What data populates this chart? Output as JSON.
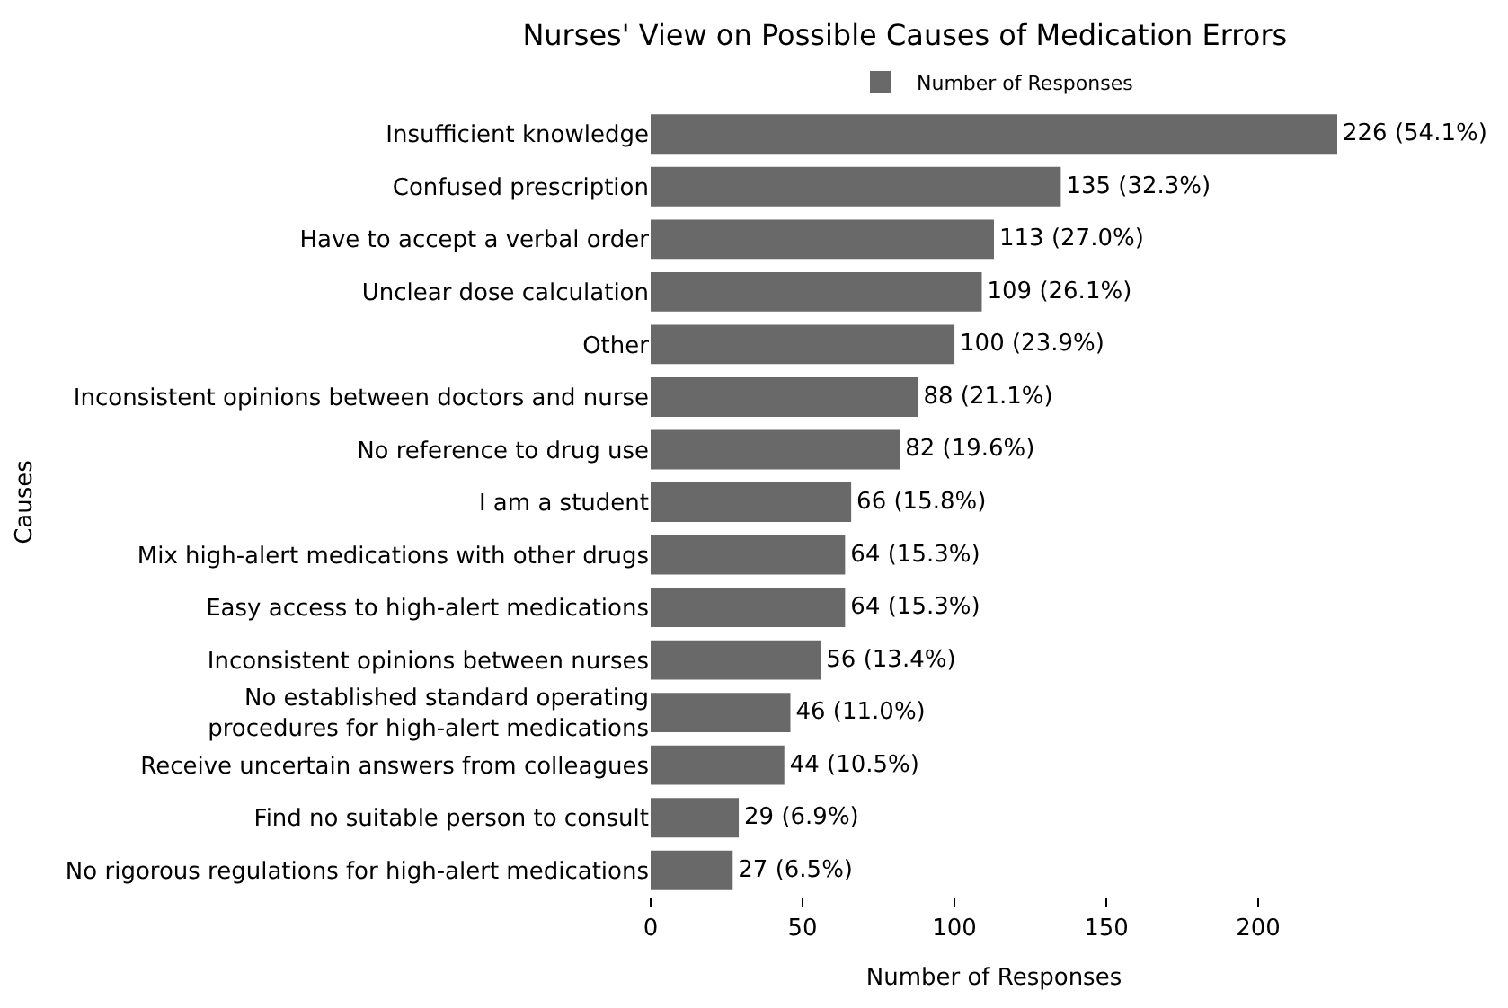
{
  "chart_data": {
    "type": "bar",
    "orientation": "horizontal",
    "title": "Nurses' View on Possible Causes of Medication Errors",
    "xlabel": "Number of Responses",
    "ylabel": "Causes",
    "categories": [
      "Insufficient knowledge",
      "Confused prescription",
      "Have to accept a verbal order",
      "Unclear dose calculation",
      "Other",
      "Inconsistent opinions between doctors and nurse",
      "No reference to drug use",
      "I am a student",
      "Mix high-alert medications with other drugs",
      "Easy access to high-alert medications",
      "Inconsistent opinions between nurses",
      "No established standard operating\nprocedures for high-alert medications",
      "Receive uncertain answers from colleagues",
      "Find no suitable person to consult",
      "No rigorous regulations for high-alert medications"
    ],
    "series": [
      {
        "name": "Number of Responses",
        "color": "#696969",
        "values": [
          226,
          135,
          113,
          109,
          100,
          88,
          82,
          66,
          64,
          64,
          56,
          46,
          44,
          29,
          27
        ],
        "value_labels": [
          "226 (54.1%)",
          "135 (32.3%)",
          "113 (27.0%)",
          "109 (26.1%)",
          "100 (23.9%)",
          "88 (21.1%)",
          "82 (19.6%)",
          "66 (15.8%)",
          "64 (15.3%)",
          "64 (15.3%)",
          "56 (13.4%)",
          "46 (11.0%)",
          "44 (10.5%)",
          "29 (6.9%)",
          "27 (6.5%)"
        ]
      }
    ],
    "xlim": [
      0,
      226
    ],
    "xticks": [
      0,
      50,
      100,
      150,
      200
    ],
    "legend": "top"
  }
}
